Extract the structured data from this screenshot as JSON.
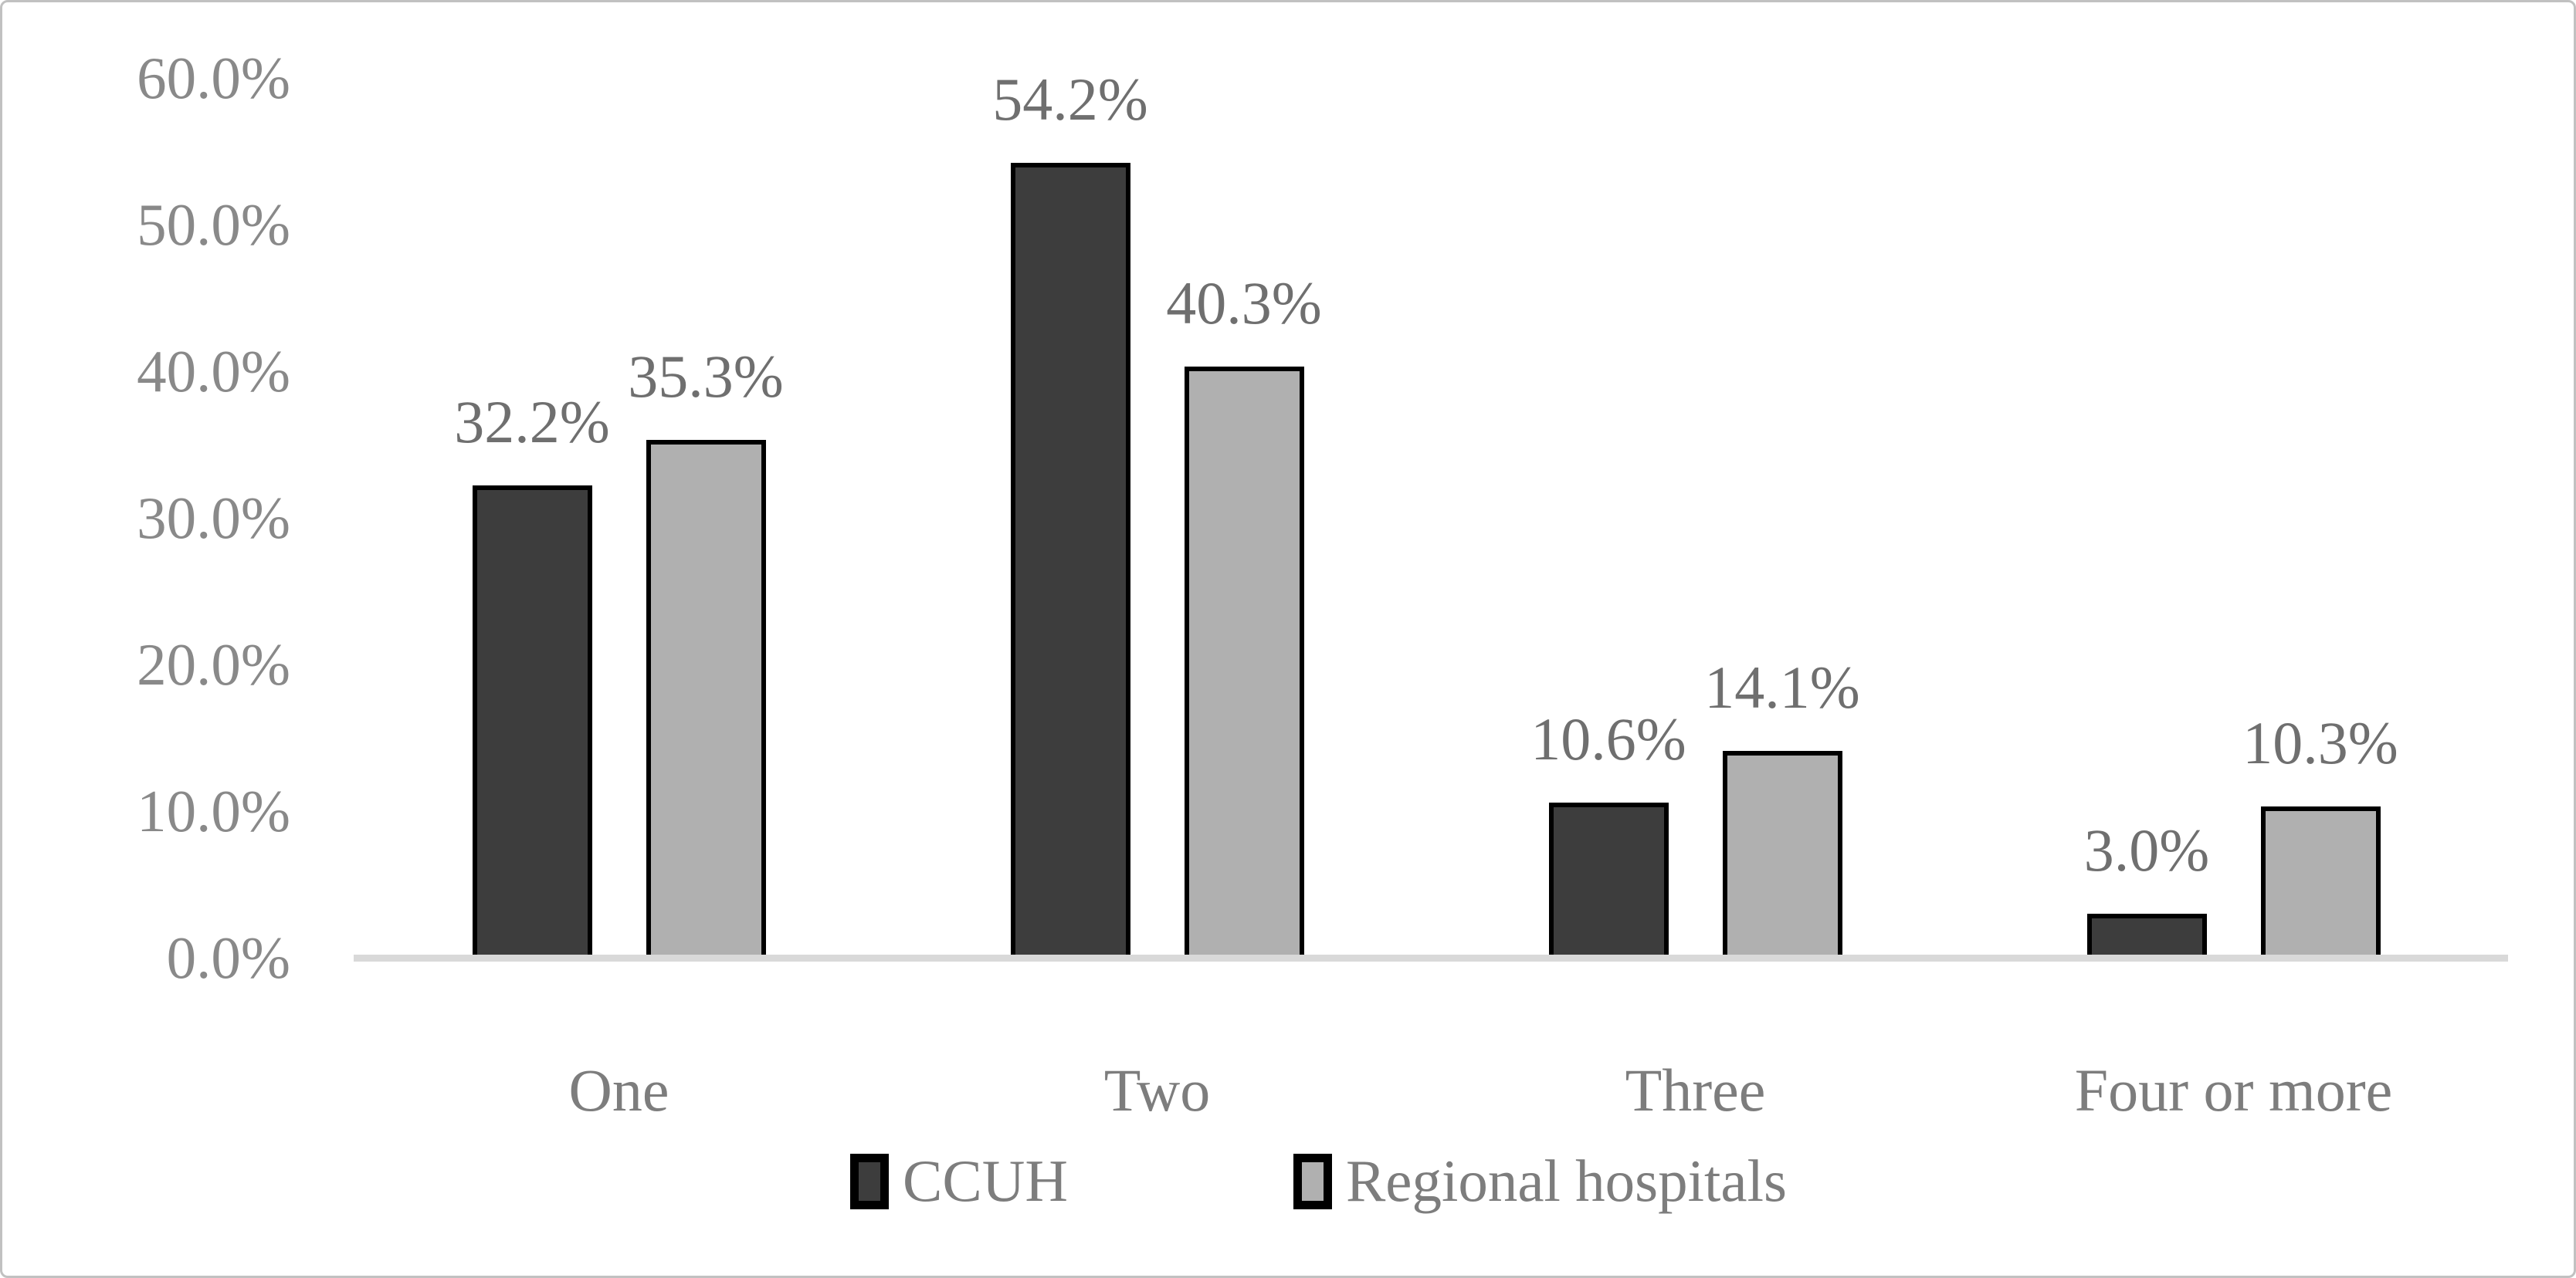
{
  "chart_data": {
    "type": "bar",
    "title": "",
    "categories": [
      "One",
      "Two",
      "Three",
      "Four or more"
    ],
    "series": [
      {
        "name": "CCUH",
        "color": "#3d3d3d",
        "values": [
          32.2,
          54.2,
          10.6,
          3.0
        ],
        "data_labels": [
          "32.2%",
          "54.2%",
          "10.6%",
          "3.0%"
        ]
      },
      {
        "name": "Regional hospitals",
        "color": "#b0b0b0",
        "values": [
          35.3,
          40.3,
          14.1,
          10.3
        ],
        "data_labels": [
          "35.3%",
          "40.3%",
          "14.1%",
          "10.3%"
        ]
      }
    ],
    "y_axis": {
      "min": 0,
      "max": 60,
      "step": 10,
      "tick_labels": [
        "0.0%",
        "10.0%",
        "20.0%",
        "30.0%",
        "40.0%",
        "50.0%",
        "60.0%"
      ]
    },
    "legend": {
      "position": "bottom",
      "entries": [
        "CCUH",
        "Regional hospitals"
      ]
    },
    "grid": false,
    "bar_outline_color": "#000000",
    "axis_line_color": "#d9d9d9",
    "text_color": "#7d7d7d"
  }
}
